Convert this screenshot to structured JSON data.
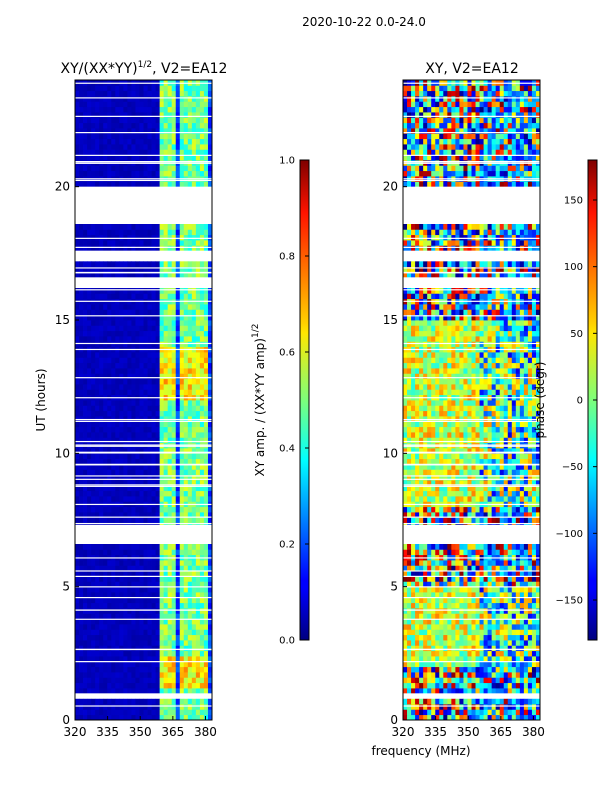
{
  "figure": {
    "suptitle": "2020-10-22 0.0-24.0",
    "xlabel": "frequency (MHz)"
  },
  "chart_data": [
    {
      "type": "heatmap",
      "title": "XY/(XX*YY)^1/2, V2=EA12",
      "title_parts": {
        "main": "XY/(XX*YY)",
        "sup": "1/2",
        "tail": ", V2=EA12"
      },
      "xlabel": "frequency (MHz)",
      "ylabel": "UT (hours)",
      "xlim": [
        320,
        383
      ],
      "ylim": [
        0,
        24
      ],
      "xticks": [
        320,
        335,
        350,
        365,
        380
      ],
      "yticks": [
        0,
        5,
        10,
        15,
        20
      ],
      "colormap": "jet",
      "colorbar": {
        "label": "XY amp. / (XX*YY amp)^1/2",
        "label_parts": {
          "main": "XY amp. / (XX*YY amp)",
          "sup": "1/2"
        },
        "range": [
          0.0,
          1.0
        ],
        "ticks": [
          "0.0",
          "0.2",
          "0.4",
          "0.6",
          "0.8",
          "1.0"
        ]
      },
      "bright_channels_mhz": [
        361,
        365,
        371,
        375,
        379
      ],
      "data_gaps_hours": [
        [
          18.6,
          20.0
        ],
        [
          17.3,
          17.6
        ],
        [
          16.2,
          16.6
        ],
        [
          6.7,
          7.3
        ],
        [
          0.8,
          1.0
        ]
      ]
    },
    {
      "type": "heatmap",
      "title": "XY, V2=EA12",
      "xlabel": "frequency (MHz)",
      "ylabel": "",
      "xlim": [
        320,
        383
      ],
      "ylim": [
        0,
        24
      ],
      "xticks": [
        320,
        335,
        350,
        365,
        380
      ],
      "yticks": [
        0,
        5,
        10,
        15,
        20
      ],
      "colormap": "jet",
      "colorbar": {
        "label": "phase (degr)",
        "range": [
          -180,
          180
        ],
        "ticks": [
          "-150",
          "-100",
          "-50",
          "0",
          "50",
          "100",
          "150"
        ]
      },
      "data_gaps_hours": [
        [
          18.6,
          20.0
        ],
        [
          17.3,
          17.6
        ],
        [
          16.2,
          16.6
        ],
        [
          6.7,
          7.3
        ],
        [
          0.8,
          1.0
        ]
      ]
    }
  ]
}
